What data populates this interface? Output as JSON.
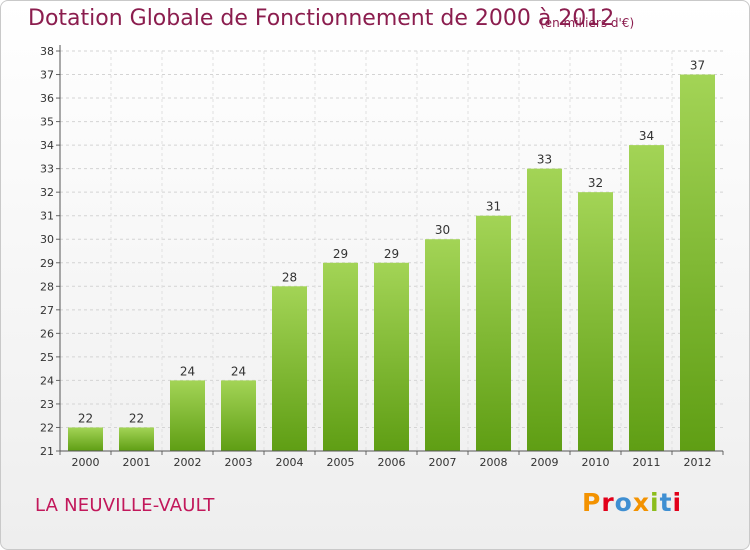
{
  "header": {
    "title": "Dotation Globale de Fonctionnement de 2000 à 2012",
    "unit": "(en milliers d'€)"
  },
  "footer": {
    "commune": "LA NEUVILLE-VAULT",
    "logo": "Proxiti"
  },
  "colors": {
    "bar_top": "#a3d456",
    "bar_bottom": "#5f9e14",
    "title": "#8b1d4e",
    "commune": "#c2185b",
    "logo": [
      "#f39200",
      "#e2001a",
      "#3f8fd2",
      "#f39200",
      "#8cbd1c",
      "#3f8fd2",
      "#e2001a"
    ]
  },
  "chart_data": {
    "type": "bar",
    "categories": [
      "2000",
      "2001",
      "2002",
      "2003",
      "2004",
      "2005",
      "2006",
      "2007",
      "2008",
      "2009",
      "2010",
      "2011",
      "2012"
    ],
    "values": [
      22,
      22,
      24,
      24,
      28,
      29,
      29,
      30,
      31,
      33,
      32,
      34,
      37
    ],
    "ylim": [
      21,
      38
    ],
    "yticks": [
      21,
      22,
      23,
      24,
      25,
      26,
      27,
      28,
      29,
      30,
      31,
      32,
      33,
      34,
      35,
      36,
      37,
      38
    ],
    "grid": true,
    "data_labels": true
  }
}
